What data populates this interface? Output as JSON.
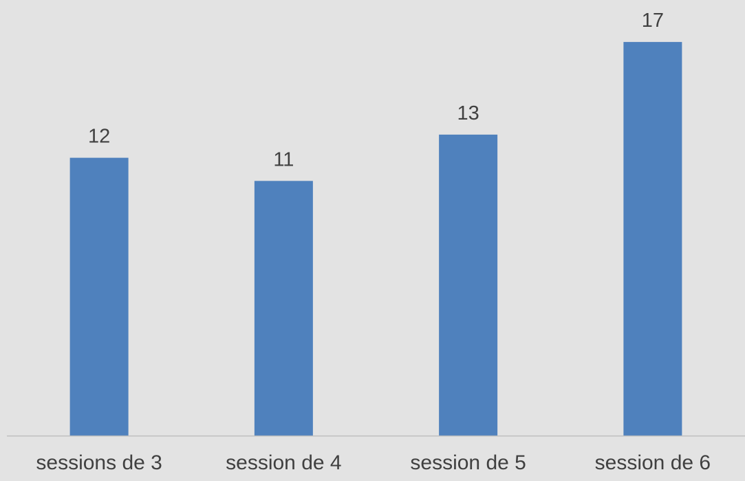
{
  "chart_data": {
    "type": "bar",
    "categories": [
      "sessions de 3",
      "session de 4",
      "session de 5",
      "session de 6"
    ],
    "values": [
      12,
      11,
      13,
      17
    ],
    "data_labels": [
      "12",
      "11",
      "13",
      "17"
    ],
    "title": "",
    "xlabel": "",
    "ylabel": "",
    "ylim": [
      0,
      18
    ],
    "grid": false,
    "legend": "none",
    "bar_color": "#4f81bd",
    "background_color": "#e3e3e3",
    "axis_color": "#bfbfbf",
    "text_color": "#404040"
  }
}
